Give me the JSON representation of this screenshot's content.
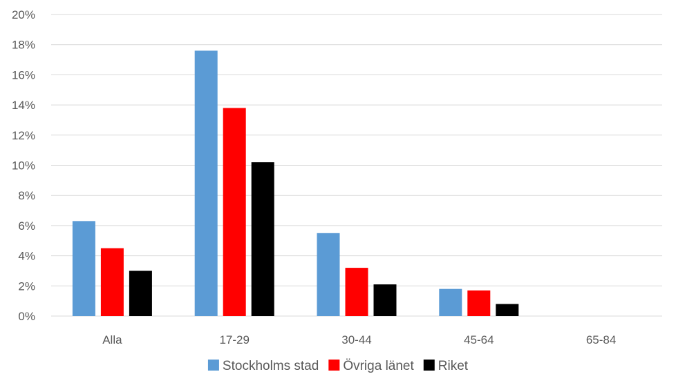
{
  "chart_data": {
    "type": "bar",
    "title": "",
    "xlabel": "",
    "ylabel": "",
    "categories": [
      "Alla",
      "17-29",
      "30-44",
      "45-64",
      "65-84"
    ],
    "series": [
      {
        "name": "Stockholms stad",
        "color": "#5B9BD5",
        "values": [
          6.3,
          17.6,
          5.5,
          1.8,
          0
        ]
      },
      {
        "name": "Övriga länet",
        "color": "#FF0000",
        "values": [
          4.5,
          13.8,
          3.2,
          1.7,
          0
        ]
      },
      {
        "name": "Riket",
        "color": "#000000",
        "values": [
          3.0,
          10.2,
          2.1,
          0.8,
          0
        ]
      }
    ],
    "ylim": [
      0,
      20
    ],
    "y_ticks": [
      0,
      2,
      4,
      6,
      8,
      10,
      12,
      14,
      16,
      18,
      20
    ],
    "y_tick_labels": [
      "0%",
      "2%",
      "4%",
      "6%",
      "8%",
      "10%",
      "12%",
      "14%",
      "16%",
      "18%",
      "20%"
    ],
    "grid": true,
    "legend_position": "bottom",
    "colors": {
      "gridline": "#D9D9D9",
      "tick_text": "#595959"
    }
  }
}
